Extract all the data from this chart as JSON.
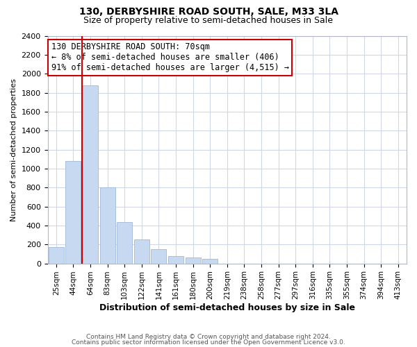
{
  "title": "130, DERBYSHIRE ROAD SOUTH, SALE, M33 3LA",
  "subtitle": "Size of property relative to semi-detached houses in Sale",
  "xlabel": "Distribution of semi-detached houses by size in Sale",
  "ylabel": "Number of semi-detached properties",
  "bar_labels": [
    "25sqm",
    "44sqm",
    "64sqm",
    "83sqm",
    "103sqm",
    "122sqm",
    "141sqm",
    "161sqm",
    "180sqm",
    "200sqm",
    "219sqm",
    "238sqm",
    "258sqm",
    "277sqm",
    "297sqm",
    "316sqm",
    "335sqm",
    "355sqm",
    "374sqm",
    "394sqm",
    "413sqm"
  ],
  "bar_values": [
    170,
    1080,
    1880,
    800,
    435,
    250,
    150,
    80,
    65,
    45,
    0,
    0,
    0,
    0,
    0,
    0,
    0,
    0,
    0,
    0,
    0
  ],
  "bar_color": "#c6d9f0",
  "bar_edge_color": "#a0b8d8",
  "vline_x": 1.5,
  "vline_color": "#cc0000",
  "ylim": [
    0,
    2400
  ],
  "yticks": [
    0,
    200,
    400,
    600,
    800,
    1000,
    1200,
    1400,
    1600,
    1800,
    2000,
    2200,
    2400
  ],
  "annotation_title": "130 DERBYSHIRE ROAD SOUTH: 70sqm",
  "annotation_line1": "← 8% of semi-detached houses are smaller (406)",
  "annotation_line2": "91% of semi-detached houses are larger (4,515) →",
  "footnote1": "Contains HM Land Registry data © Crown copyright and database right 2024.",
  "footnote2": "Contains public sector information licensed under the Open Government Licence v3.0.",
  "bg_color": "#ffffff",
  "grid_color": "#d0d8e8"
}
